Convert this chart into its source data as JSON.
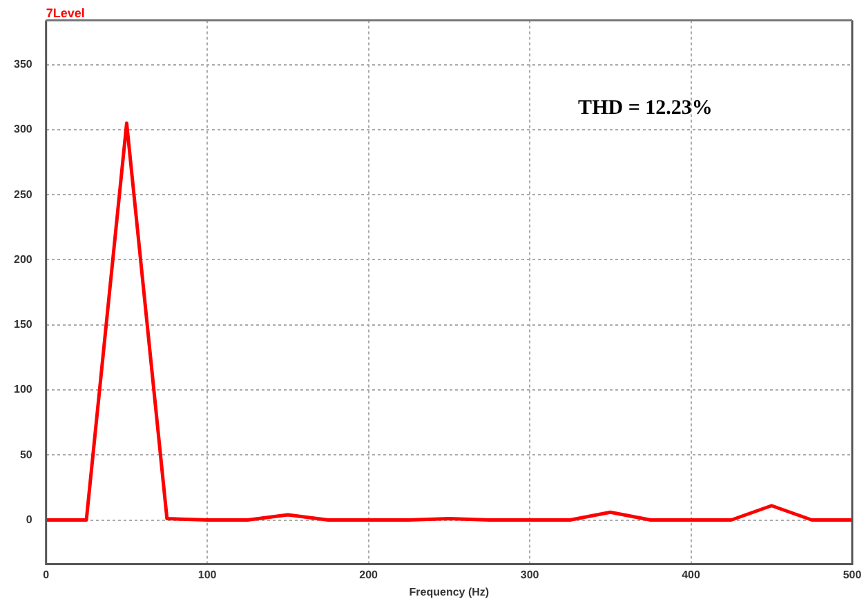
{
  "chart_data": {
    "type": "line",
    "ylabel": "7Level",
    "xlabel": "Frequency (Hz)",
    "annotations": [
      "THD = 12.23%"
    ],
    "x": [
      0,
      25,
      50,
      75,
      100,
      125,
      150,
      175,
      200,
      225,
      250,
      275,
      300,
      325,
      350,
      375,
      400,
      425,
      450,
      475,
      500
    ],
    "series": [
      {
        "color": "#ff0000",
        "values": [
          0,
          0,
          305,
          1,
          0,
          0,
          4,
          0,
          0,
          0,
          1,
          0,
          0,
          0,
          6,
          0,
          0,
          0,
          11,
          0,
          0
        ]
      }
    ],
    "xlim": [
      0,
      500
    ],
    "xticks": [
      0,
      100,
      200,
      300,
      400,
      500
    ],
    "ylim": [
      -34,
      384
    ],
    "yticks": [
      0,
      50,
      100,
      150,
      200,
      250,
      300,
      350
    ],
    "grid": true,
    "legend": false,
    "marker": "none",
    "line_style": "solid"
  }
}
